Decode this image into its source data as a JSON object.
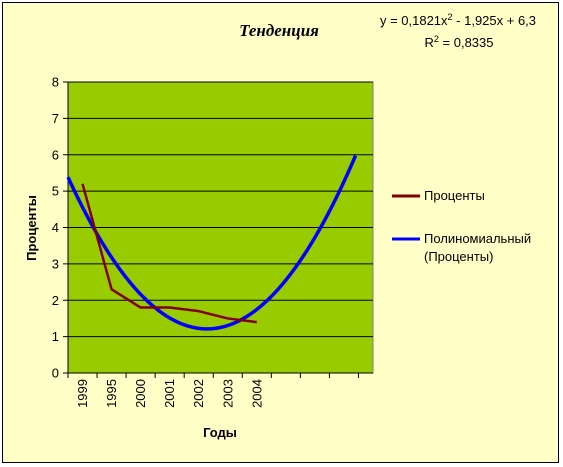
{
  "chart_data": {
    "type": "line",
    "title": "Тенденция",
    "xlabel": "Годы",
    "ylabel": "Проценты",
    "ylim": [
      0,
      8
    ],
    "yticks": [
      "0",
      "1",
      "2",
      "3",
      "4",
      "5",
      "6",
      "7",
      "8"
    ],
    "categories": [
      "1999",
      "1995",
      "2000",
      "2001",
      "2002",
      "2003",
      "2004"
    ],
    "grid": "horizontal",
    "legend_position": "right",
    "plot_background": "#99cc00",
    "outer_background": "#ffffc8",
    "series": [
      {
        "name": "Проценты",
        "color": "#800000",
        "x": [
          1,
          2,
          3,
          4,
          5,
          6,
          7
        ],
        "values": [
          5.2,
          2.3,
          1.8,
          1.8,
          1.7,
          1.5,
          1.4
        ]
      },
      {
        "name": "Полиномиальный (Проценты)",
        "color": "#0000ff",
        "trendline": true,
        "coefficients": [
          0.1821,
          -1.925,
          6.3
        ],
        "x_range": [
          0.5,
          10.4
        ]
      }
    ],
    "equation": {
      "line1_prefix": "y = 0,1821x",
      "line1_exp": "2",
      "line1_suffix": " - 1,925x + 6,3",
      "line2_prefix": "R",
      "line2_exp": "2",
      "line2_suffix": " = 0,8335"
    }
  }
}
